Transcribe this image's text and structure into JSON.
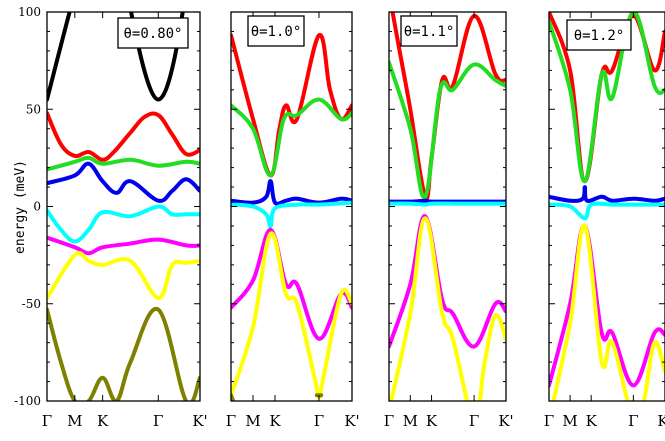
{
  "chart_data": {
    "type": "line",
    "ylabel": "energy (meV)",
    "ylim": [
      -100,
      100
    ],
    "yticks": [
      100,
      50,
      0,
      -50,
      -100
    ],
    "k_labels": [
      "Γ",
      "M",
      "K",
      "Γ",
      "K'"
    ],
    "k_positions": [
      0,
      0.5,
      1.0,
      2.0,
      2.75
    ],
    "band_colors": {
      "black": "#000000",
      "red": "#ff0000",
      "green": "#22dd22",
      "blue": "#0000ee",
      "cyan": "#00ffff",
      "magenta": "#ff00ff",
      "yellow": "#ffff00",
      "olive": "#808000"
    },
    "panels": [
      {
        "annotation": "θ=0.80°",
        "series": [
          {
            "color": "black",
            "x": [
              0,
              0.5,
              1.0,
              2.0,
              2.75
            ],
            "y": [
              55,
              110,
              160,
              55,
              160
            ]
          },
          {
            "color": "red",
            "x": [
              0,
              0.25,
              0.5,
              0.75,
              1.0,
              1.2,
              1.5,
              1.75,
              2.0,
              2.25,
              2.5,
              2.75
            ],
            "y": [
              48,
              32,
              26,
              28,
              24,
              28,
              38,
              46,
              47,
              37,
              27,
              29
            ]
          },
          {
            "color": "green",
            "x": [
              0,
              0.5,
              0.75,
              1.0,
              1.5,
              2.0,
              2.5,
              2.75
            ],
            "y": [
              19,
              23,
              25,
              22,
              24,
              21,
              23,
              22
            ]
          },
          {
            "color": "blue",
            "x": [
              0,
              0.5,
              0.75,
              1.0,
              1.25,
              1.5,
              2.0,
              2.25,
              2.5,
              2.75
            ],
            "y": [
              12,
              16,
              22,
              13,
              7,
              13,
              3,
              8,
              14,
              8
            ]
          },
          {
            "color": "cyan",
            "x": [
              0,
              0.25,
              0.5,
              0.75,
              1.0,
              1.5,
              2.0,
              2.25,
              2.5,
              2.75
            ],
            "y": [
              -2,
              -12,
              -18,
              -12,
              -3,
              -5,
              0,
              -4,
              -4,
              -4
            ]
          },
          {
            "color": "magenta",
            "x": [
              0,
              0.5,
              0.75,
              1.0,
              1.5,
              2.0,
              2.5,
              2.75
            ],
            "y": [
              -16,
              -21,
              -24,
              -21,
              -19,
              -17,
              -20,
              -20
            ]
          },
          {
            "color": "yellow",
            "x": [
              0,
              0.5,
              0.75,
              1.0,
              1.5,
              2.0,
              2.25,
              2.5,
              2.75
            ],
            "y": [
              -47,
              -25,
              -28,
              -30,
              -28,
              -47,
              -30,
              -29,
              -28
            ]
          },
          {
            "color": "olive",
            "x": [
              0,
              0.25,
              0.5,
              0.75,
              1.0,
              1.25,
              1.5,
              2.0,
              2.5,
              2.75
            ],
            "y": [
              -53,
              -80,
              -100,
              -100,
              -88,
              -100,
              -80,
              -53,
              -100,
              -88
            ]
          }
        ]
      },
      {
        "annotation": "θ=1.0°",
        "series": [
          {
            "color": "red",
            "x": [
              0,
              0.5,
              0.9,
              1.1,
              1.25,
              1.5,
              2.0,
              2.25,
              2.5,
              2.75
            ],
            "y": [
              88,
              45,
              16,
              40,
              52,
              45,
              88,
              60,
              45,
              52
            ]
          },
          {
            "color": "green",
            "x": [
              0,
              0.5,
              0.9,
              1.2,
              1.5,
              2.0,
              2.5,
              2.75
            ],
            "y": [
              52,
              40,
              16,
              45,
              47,
              55,
              45,
              48
            ]
          },
          {
            "color": "blue",
            "x": [
              0,
              0.5,
              0.8,
              0.9,
              1.0,
              1.25,
              1.5,
              2.0,
              2.5,
              2.75
            ],
            "y": [
              3,
              2,
              5,
              13,
              2,
              3,
              4,
              2,
              4,
              3
            ]
          },
          {
            "color": "cyan",
            "x": [
              0,
              0.5,
              0.8,
              0.9,
              1.0,
              1.5,
              2.0,
              2.75
            ],
            "y": [
              1,
              0,
              -4,
              -10,
              -1,
              1,
              1,
              2
            ]
          },
          {
            "color": "magenta",
            "x": [
              0,
              0.5,
              0.9,
              1.25,
              1.5,
              2.0,
              2.5,
              2.75
            ],
            "y": [
              -52,
              -38,
              -12,
              -40,
              -40,
              -68,
              -45,
              -52
            ]
          },
          {
            "color": "yellow",
            "x": [
              0,
              0.5,
              0.9,
              1.25,
              1.5,
              1.9,
              2.0,
              2.1,
              2.5,
              2.75
            ],
            "y": [
              -97,
              -62,
              -14,
              -45,
              -50,
              -88,
              -98,
              -88,
              -45,
              -50
            ]
          },
          {
            "color": "olive",
            "x": [
              0,
              0.05
            ],
            "y": [
              -97,
              -100
            ]
          },
          {
            "color": "olive",
            "x": [
              1.95,
              2.05
            ],
            "y": [
              -97,
              -97
            ]
          }
        ]
      },
      {
        "annotation": "θ=1.1°",
        "series": [
          {
            "color": "red",
            "x": [
              0,
              0.25,
              0.5,
              0.85,
              1.0,
              1.25,
              1.5,
              2.0,
              2.5,
              2.75
            ],
            "y": [
              110,
              80,
              50,
              5,
              25,
              65,
              62,
              98,
              68,
              65
            ]
          },
          {
            "color": "green",
            "x": [
              0,
              0.5,
              0.85,
              1.2,
              1.5,
              2.0,
              2.5,
              2.75
            ],
            "y": [
              74,
              40,
              5,
              60,
              60,
              73,
              65,
              62
            ]
          },
          {
            "color": "blue",
            "x": [
              0,
              0.5,
              0.85,
              1.0,
              1.5,
              2.0,
              2.75
            ],
            "y": [
              2.5,
              2.5,
              3,
              2.5,
              2.5,
              2.5,
              2.5
            ]
          },
          {
            "color": "cyan",
            "x": [
              0,
              0.5,
              0.85,
              1.0,
              1.5,
              2.0,
              2.75
            ],
            "y": [
              1.5,
              1.5,
              1,
              1.5,
              1.5,
              1.5,
              1.5
            ]
          },
          {
            "color": "magenta",
            "x": [
              0,
              0.5,
              0.85,
              1.25,
              1.5,
              2.0,
              2.5,
              2.75
            ],
            "y": [
              -72,
              -40,
              -5,
              -48,
              -55,
              -72,
              -50,
              -54
            ]
          },
          {
            "color": "yellow",
            "x": [
              0,
              0.5,
              0.85,
              1.25,
              1.5,
              2.0,
              2.25,
              2.5,
              2.75
            ],
            "y": [
              -105,
              -55,
              -6,
              -55,
              -68,
              -110,
              -80,
              -56,
              -68
            ]
          }
        ]
      },
      {
        "annotation": "θ=1.2°",
        "series": [
          {
            "color": "red",
            "x": [
              0,
              0.5,
              0.85,
              1.25,
              1.5,
              2.0,
              2.5,
              2.75
            ],
            "y": [
              100,
              70,
              13,
              68,
              70,
              98,
              70,
              90
            ]
          },
          {
            "color": "green",
            "x": [
              0,
              0.5,
              0.85,
              1.25,
              1.5,
              2.0,
              2.5,
              2.75
            ],
            "y": [
              95,
              60,
              13,
              68,
              56,
              100,
              62,
              60
            ]
          },
          {
            "color": "blue",
            "x": [
              0,
              0.5,
              0.8,
              0.85,
              0.9,
              1.25,
              1.5,
              2.0,
              2.5,
              2.75
            ],
            "y": [
              5,
              3,
              4,
              10,
              3,
              5,
              3,
              4,
              3,
              4
            ]
          },
          {
            "color": "cyan",
            "x": [
              0,
              0.5,
              0.85,
              1.0,
              1.5,
              2.0,
              2.75
            ],
            "y": [
              1,
              0,
              -6,
              1,
              1,
              1,
              1
            ]
          },
          {
            "color": "magenta",
            "x": [
              0,
              0.5,
              0.85,
              1.25,
              1.5,
              2.0,
              2.5,
              2.75
            ],
            "y": [
              -92,
              -50,
              -10,
              -65,
              -65,
              -92,
              -65,
              -66
            ]
          },
          {
            "color": "yellow",
            "x": [
              0,
              0.5,
              0.85,
              1.25,
              1.5,
              2.0,
              2.25,
              2.5,
              2.75
            ],
            "y": [
              -110,
              -60,
              -10,
              -80,
              -70,
              -110,
              -100,
              -70,
              -85
            ]
          }
        ]
      }
    ]
  }
}
